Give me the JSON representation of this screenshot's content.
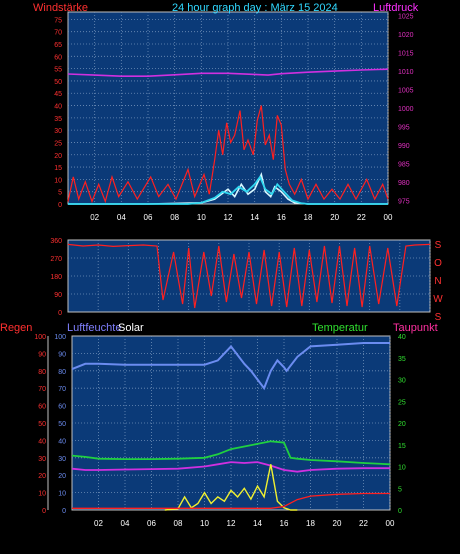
{
  "header": {
    "left_title": "Windstärke",
    "center_title": "24 hour graph day : März 15 2024",
    "right_title": "Luftdruck"
  },
  "colors": {
    "background": "#000000",
    "plot_bg": "#0b3a78",
    "grid": "#6f8fb8",
    "wind": "#ff2020",
    "gust_light": "#d8f8ff",
    "gust_cyan": "#30d8f0",
    "pressure": "#d030e0",
    "direction": "#ff2020",
    "humidity": "#6b8cf0",
    "solar": "#f0f030",
    "temperature": "#20d040",
    "dewpoint": "#d030e0",
    "rain": "#ff2020",
    "axis_red": "#ff3030",
    "axis_magenta": "#e030c0",
    "axis_green": "#30e030",
    "axis_blue": "#8080ff",
    "axis_white": "#ffffff",
    "axis_pink": "#ff30a0"
  },
  "chart_data": [
    {
      "type": "line",
      "title": "24 hour graph day : März 15 2024",
      "xlabels": [
        "02",
        "04",
        "06",
        "08",
        "10",
        "12",
        "14",
        "16",
        "18",
        "20",
        "22",
        "00"
      ],
      "left_axis": {
        "label": "Windstärke",
        "ticks": [
          0,
          5,
          10,
          15,
          20,
          25,
          30,
          35,
          40,
          45,
          50,
          55,
          60,
          65,
          70,
          75
        ],
        "range": [
          0,
          78
        ]
      },
      "right_axis": {
        "label": "Luftdruck",
        "ticks": [
          975,
          980,
          985,
          990,
          995,
          1000,
          1005,
          1010,
          1015,
          1020,
          1025
        ],
        "range": [
          974,
          1026
        ]
      },
      "series": [
        {
          "name": "pressure",
          "axis": "right",
          "points": [
            [
              0,
              1009.2
            ],
            [
              2,
              1008.9
            ],
            [
              4,
              1008.6
            ],
            [
              6,
              1008.6
            ],
            [
              8,
              1009.0
            ],
            [
              10,
              1009.4
            ],
            [
              12,
              1009.4
            ],
            [
              14,
              1009.1
            ],
            [
              15,
              1008.9
            ],
            [
              16,
              1009.3
            ],
            [
              18,
              1009.7
            ],
            [
              20,
              1010.0
            ],
            [
              22,
              1010.3
            ],
            [
              24,
              1010.5
            ]
          ]
        },
        {
          "name": "wind_gust_red",
          "axis": "left",
          "points": [
            [
              0,
              1
            ],
            [
              0.4,
              11
            ],
            [
              0.8,
              2
            ],
            [
              1.3,
              9
            ],
            [
              1.8,
              1
            ],
            [
              2.3,
              8
            ],
            [
              2.8,
              1
            ],
            [
              3.3,
              11
            ],
            [
              3.8,
              3
            ],
            [
              4.5,
              9
            ],
            [
              5.2,
              2
            ],
            [
              6.2,
              11
            ],
            [
              6.8,
              3
            ],
            [
              7.5,
              8
            ],
            [
              8.1,
              2
            ],
            [
              9.0,
              14
            ],
            [
              9.5,
              3
            ],
            [
              10.2,
              12
            ],
            [
              10.6,
              4
            ],
            [
              11.0,
              18
            ],
            [
              11.3,
              30
            ],
            [
              11.6,
              20
            ],
            [
              11.9,
              33
            ],
            [
              12.2,
              25
            ],
            [
              12.5,
              28
            ],
            [
              12.9,
              38
            ],
            [
              13.2,
              22
            ],
            [
              13.5,
              26
            ],
            [
              13.9,
              20
            ],
            [
              14.2,
              34
            ],
            [
              14.5,
              40
            ],
            [
              14.8,
              24
            ],
            [
              15.1,
              28
            ],
            [
              15.4,
              18
            ],
            [
              15.7,
              36
            ],
            [
              16.0,
              32
            ],
            [
              16.3,
              14
            ],
            [
              16.6,
              8
            ],
            [
              17.0,
              4
            ],
            [
              17.5,
              10
            ],
            [
              18.0,
              2
            ],
            [
              18.6,
              8
            ],
            [
              19.2,
              2
            ],
            [
              19.8,
              6
            ],
            [
              20.4,
              2
            ],
            [
              21.0,
              8
            ],
            [
              21.6,
              2
            ],
            [
              22.4,
              10
            ],
            [
              23.0,
              2
            ],
            [
              23.6,
              8
            ],
            [
              24,
              2
            ]
          ]
        },
        {
          "name": "wind_avg_light",
          "axis": "left",
          "points": [
            [
              0,
              0
            ],
            [
              6,
              0
            ],
            [
              10,
              0.5
            ],
            [
              11,
              2
            ],
            [
              11.5,
              4
            ],
            [
              12,
              6
            ],
            [
              12.5,
              3
            ],
            [
              13,
              8
            ],
            [
              13.5,
              4
            ],
            [
              14,
              6
            ],
            [
              14.5,
              12
            ],
            [
              14.8,
              5
            ],
            [
              15.2,
              3
            ],
            [
              15.5,
              7
            ],
            [
              16,
              5
            ],
            [
              16.5,
              2
            ],
            [
              17,
              0.5
            ],
            [
              18,
              0
            ],
            [
              24,
              0
            ]
          ]
        },
        {
          "name": "wind_avg_cyan",
          "axis": "left",
          "points": [
            [
              0,
              0
            ],
            [
              9,
              0
            ],
            [
              10,
              0.5
            ],
            [
              11,
              2.5
            ],
            [
              11.6,
              5
            ],
            [
              12.2,
              4
            ],
            [
              12.8,
              7
            ],
            [
              13.4,
              5
            ],
            [
              14,
              8
            ],
            [
              14.4,
              11
            ],
            [
              14.8,
              6
            ],
            [
              15.3,
              4
            ],
            [
              15.7,
              8
            ],
            [
              16.2,
              5
            ],
            [
              16.8,
              1.5
            ],
            [
              17.5,
              0.3
            ],
            [
              18,
              0
            ],
            [
              24,
              0
            ]
          ]
        }
      ]
    },
    {
      "type": "scatter",
      "left_axis": {
        "ticks": [
          0,
          90,
          180,
          270,
          360
        ],
        "range": [
          0,
          360
        ]
      },
      "right_axis": {
        "labels": [
          "S",
          "O",
          "N",
          "W",
          "S"
        ]
      },
      "series": [
        {
          "name": "wind_direction",
          "points": [
            [
              0,
              338
            ],
            [
              1,
              330
            ],
            [
              2,
              335
            ],
            [
              3,
              328
            ],
            [
              4,
              332
            ],
            [
              5,
              335
            ],
            [
              5.9,
              330
            ],
            [
              6.3,
              60
            ],
            [
              7,
              300
            ],
            [
              7.6,
              40
            ],
            [
              8,
              320
            ],
            [
              8.4,
              20
            ],
            [
              9,
              300
            ],
            [
              9.5,
              80
            ],
            [
              10,
              330
            ],
            [
              10.5,
              50
            ],
            [
              11,
              290
            ],
            [
              11.5,
              70
            ],
            [
              12,
              300
            ],
            [
              12.5,
              40
            ],
            [
              13,
              310
            ],
            [
              13.5,
              30
            ],
            [
              14,
              300
            ],
            [
              14.5,
              25
            ],
            [
              15,
              320
            ],
            [
              15.5,
              30
            ],
            [
              16,
              310
            ],
            [
              16.5,
              50
            ],
            [
              17,
              330
            ],
            [
              17.5,
              45
            ],
            [
              18,
              330
            ],
            [
              18.5,
              30
            ],
            [
              19,
              320
            ],
            [
              19.5,
              25
            ],
            [
              20,
              330
            ],
            [
              20.6,
              40
            ],
            [
              21.2,
              320
            ],
            [
              21.8,
              30
            ],
            [
              22.4,
              330
            ],
            [
              23,
              335
            ],
            [
              24,
              338
            ]
          ]
        }
      ]
    },
    {
      "type": "line",
      "axis_titles": [
        "Regen",
        "Luftfeuchte",
        "Solar",
        "Temperatur",
        "Taupunkt"
      ],
      "left_axis_rain": {
        "label": "Regen",
        "ticks": [
          0,
          10,
          20,
          30,
          40,
          50,
          60,
          70,
          80,
          90,
          100
        ],
        "range": [
          0,
          100
        ]
      },
      "left_axis_humidity": {
        "label": "Luftfeuchte",
        "ticks": [
          0,
          10,
          20,
          30,
          40,
          50,
          60,
          70,
          80,
          90,
          100
        ],
        "range": [
          0,
          100
        ]
      },
      "right_axis": {
        "label": "Temperatur",
        "ticks": [
          0,
          5,
          10,
          15,
          20,
          25,
          30,
          35,
          40
        ],
        "range": [
          0,
          40
        ]
      },
      "series": [
        {
          "name": "humidity",
          "axis": "humidity",
          "points": [
            [
              0,
              81
            ],
            [
              1,
              84
            ],
            [
              2,
              84
            ],
            [
              4,
              83.5
            ],
            [
              6,
              83.5
            ],
            [
              8,
              83.5
            ],
            [
              10,
              83.5
            ],
            [
              11,
              86
            ],
            [
              12,
              94
            ],
            [
              13,
              84
            ],
            [
              13.5,
              80
            ],
            [
              14,
              75
            ],
            [
              14.5,
              70
            ],
            [
              15,
              80
            ],
            [
              15.5,
              86
            ],
            [
              16,
              82
            ],
            [
              16.2,
              80
            ],
            [
              17,
              88
            ],
            [
              18,
              94
            ],
            [
              20,
              95
            ],
            [
              22,
              96
            ],
            [
              24,
              96
            ]
          ]
        },
        {
          "name": "temperature",
          "axis": "right",
          "points": [
            [
              0,
              12.5
            ],
            [
              1,
              12.2
            ],
            [
              2,
              11.8
            ],
            [
              4,
              11.7
            ],
            [
              6,
              11.7
            ],
            [
              8,
              11.8
            ],
            [
              10,
              12
            ],
            [
              11,
              12.8
            ],
            [
              12,
              14
            ],
            [
              13,
              14.6
            ],
            [
              14,
              15.2
            ],
            [
              15,
              15.8
            ],
            [
              16,
              15.5
            ],
            [
              16.5,
              12
            ],
            [
              17,
              11.8
            ],
            [
              18,
              11.5
            ],
            [
              20,
              11.2
            ],
            [
              22,
              10.8
            ],
            [
              24,
              10.5
            ]
          ]
        },
        {
          "name": "dewpoint",
          "axis": "right",
          "points": [
            [
              0,
              9.5
            ],
            [
              1,
              9.2
            ],
            [
              2,
              9.2
            ],
            [
              4,
              9.3
            ],
            [
              6,
              9.4
            ],
            [
              8,
              9.5
            ],
            [
              10,
              10
            ],
            [
              11,
              10.5
            ],
            [
              12,
              11
            ],
            [
              13,
              10.8
            ],
            [
              14,
              11
            ],
            [
              15,
              10.2
            ],
            [
              16,
              9.2
            ],
            [
              17,
              8.8
            ],
            [
              18,
              9.2
            ],
            [
              20,
              9.5
            ],
            [
              22,
              9.6
            ],
            [
              24,
              9.6
            ]
          ]
        },
        {
          "name": "solar",
          "axis": "right",
          "points": [
            [
              7,
              0
            ],
            [
              8,
              0.3
            ],
            [
              8.5,
              3
            ],
            [
              9,
              0.5
            ],
            [
              9.5,
              1.5
            ],
            [
              10,
              4
            ],
            [
              10.5,
              1.5
            ],
            [
              11,
              3
            ],
            [
              11.5,
              2
            ],
            [
              12,
              4.5
            ],
            [
              12.5,
              3
            ],
            [
              13,
              5
            ],
            [
              13.5,
              2.5
            ],
            [
              14,
              5.5
            ],
            [
              14.5,
              3
            ],
            [
              15,
              10.5
            ],
            [
              15.5,
              2
            ],
            [
              16,
              0.5
            ],
            [
              16.5,
              0
            ],
            [
              17,
              0
            ]
          ]
        },
        {
          "name": "rain",
          "axis": "rain",
          "points": [
            [
              0,
              1
            ],
            [
              15,
              1
            ],
            [
              16,
              2
            ],
            [
              17,
              6
            ],
            [
              18,
              8
            ],
            [
              20,
              9
            ],
            [
              22,
              9.5
            ],
            [
              24,
              9.5
            ]
          ]
        }
      ]
    }
  ],
  "panel3": {
    "left_title": "Regen",
    "mid_title": "Luftfeuchte",
    "solar_title": "Solar",
    "temp_title": "Temperatur",
    "dew_title": "Taupunkt"
  }
}
